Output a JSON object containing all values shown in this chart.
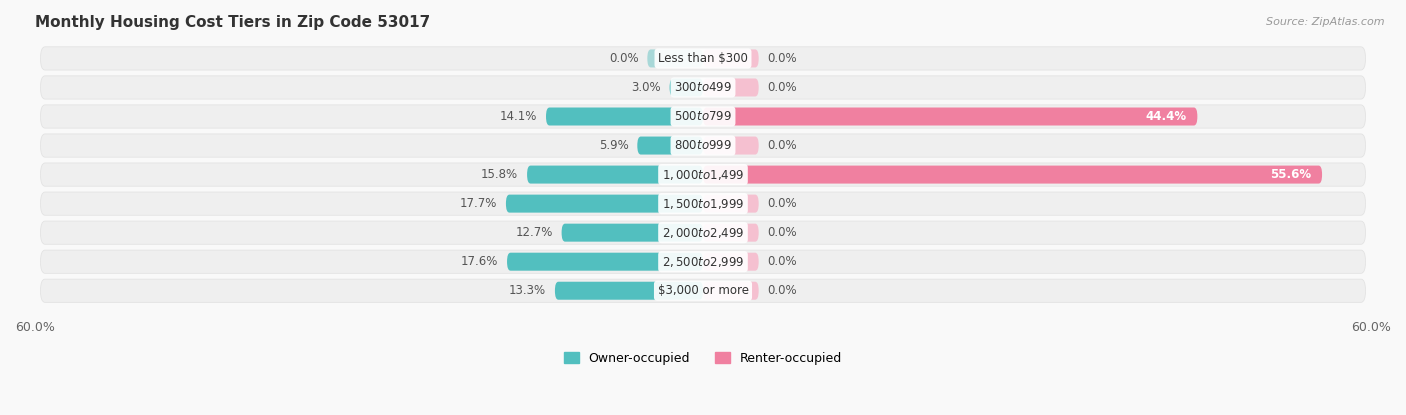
{
  "title": "Monthly Housing Cost Tiers in Zip Code 53017",
  "source": "Source: ZipAtlas.com",
  "categories": [
    "Less than $300",
    "$300 to $499",
    "$500 to $799",
    "$800 to $999",
    "$1,000 to $1,499",
    "$1,500 to $1,999",
    "$2,000 to $2,499",
    "$2,500 to $2,999",
    "$3,000 or more"
  ],
  "owner_values": [
    0.0,
    3.0,
    14.1,
    5.9,
    15.8,
    17.7,
    12.7,
    17.6,
    13.3
  ],
  "renter_values": [
    0.0,
    0.0,
    44.4,
    0.0,
    55.6,
    0.0,
    0.0,
    0.0,
    0.0
  ],
  "owner_color": "#52BFBF",
  "renter_color": "#F080A0",
  "renter_color_light": "#F5C0D0",
  "owner_color_light": "#A8D8D8",
  "axis_max": 60.0,
  "row_fill": "#efefef",
  "row_border": "#e0e0e0",
  "bg_color": "#f9f9f9",
  "title_fontsize": 11,
  "label_fontsize": 8.5,
  "tick_fontsize": 9,
  "legend_fontsize": 9,
  "value_fontsize": 8.5,
  "stub_size": 5.0
}
